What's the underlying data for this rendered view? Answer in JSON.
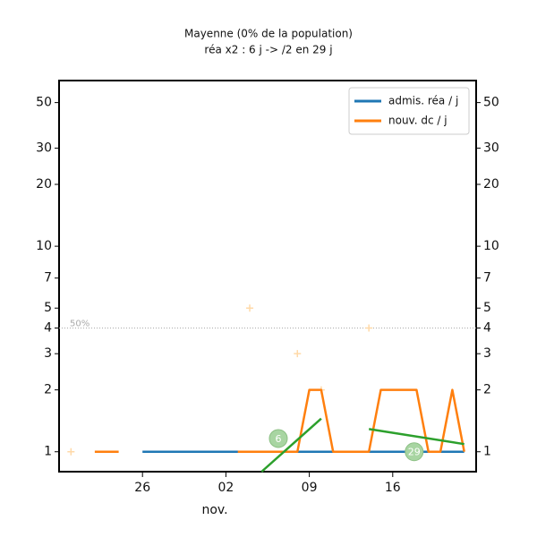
{
  "chart_data": {
    "type": "line",
    "title": "Mayenne (0% de la population)",
    "subtitle": "réa x2 : 6 j -> /2 en 29 j",
    "xlabel": "nov.",
    "log_y": true,
    "x": [
      -7,
      -6,
      -5,
      -4,
      -3,
      -2,
      -1,
      0,
      1,
      2,
      3,
      4,
      5,
      6,
      7,
      8,
      9,
      10,
      11,
      12,
      13,
      14,
      15,
      16,
      17,
      18,
      19,
      20,
      21,
      22,
      23,
      24,
      25,
      26,
      27
    ],
    "series": [
      {
        "name": "admis. réa / j",
        "color": "#1f77b4",
        "values": [
          null,
          null,
          null,
          null,
          null,
          null,
          null,
          1,
          1,
          1,
          1,
          1,
          1,
          1,
          1,
          1,
          1,
          1,
          1,
          1,
          1,
          1,
          1,
          1,
          1,
          1,
          1,
          1,
          1,
          1,
          1,
          1,
          1,
          1,
          1
        ]
      },
      {
        "name": "nouv. dc / j",
        "color": "#ff7f0e",
        "values": [
          null,
          null,
          null,
          1,
          1,
          1,
          null,
          null,
          null,
          null,
          null,
          null,
          null,
          null,
          null,
          1,
          1,
          1,
          1,
          1,
          1,
          2,
          2,
          1,
          1,
          1,
          1,
          2,
          2,
          2,
          2,
          1,
          1,
          2,
          1
        ]
      }
    ],
    "fits": [
      {
        "color": "#2ca02c",
        "x": [
          10,
          15
        ],
        "values": [
          0.8,
          1.45
        ]
      },
      {
        "color": "#2ca02c",
        "x": [
          19,
          27
        ],
        "values": [
          1.29,
          1.09
        ]
      }
    ],
    "points": {
      "color": "#ffd9a8",
      "x": [
        -6,
        9,
        13,
        15,
        19
      ],
      "values": [
        1,
        5,
        3,
        2,
        4
      ]
    },
    "annotations": [
      {
        "x": 11.4,
        "value": 1.16,
        "label": "6"
      },
      {
        "x": 22.8,
        "value": 1,
        "label": "29"
      }
    ],
    "reference": {
      "value": 4,
      "label": "50%"
    },
    "xlim": [
      -7,
      28
    ],
    "xticks": [
      {
        "value": 0,
        "label": "26"
      },
      {
        "value": 7,
        "label": "02"
      },
      {
        "value": 14,
        "label": "09"
      },
      {
        "value": 21,
        "label": "16"
      }
    ],
    "ylim": [
      0.8,
      64
    ],
    "yticks": [
      1,
      2,
      3,
      4,
      5,
      7,
      10,
      20,
      30,
      50
    ],
    "legend": "upper right"
  }
}
